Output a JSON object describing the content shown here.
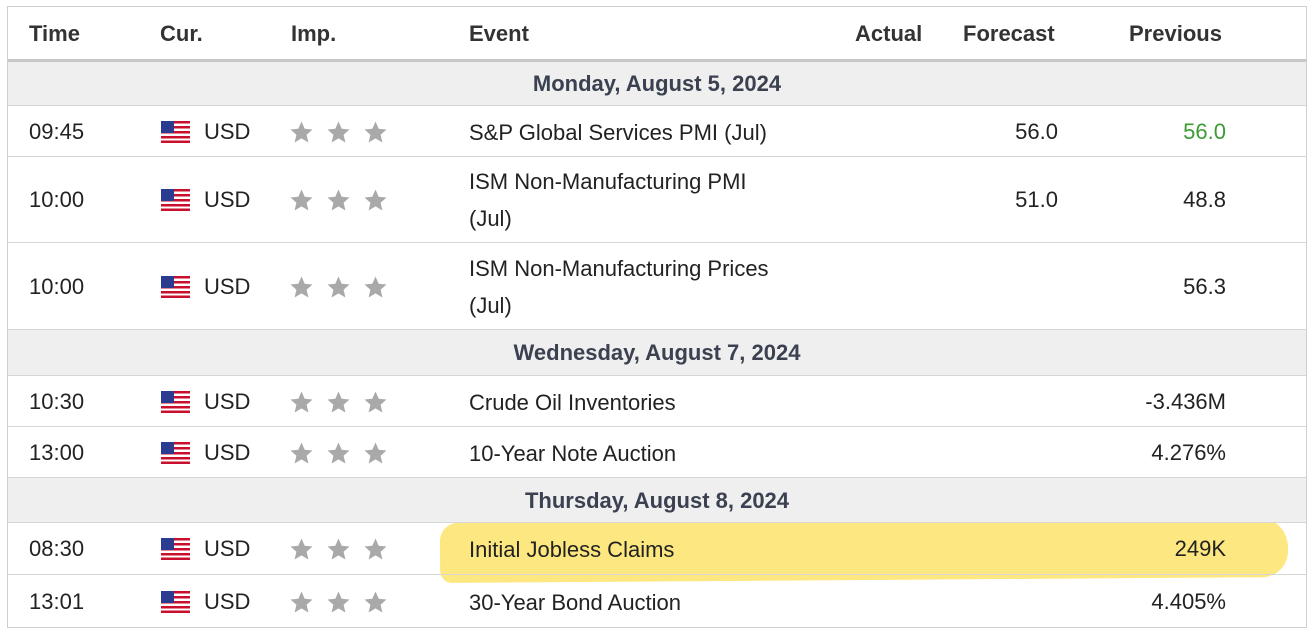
{
  "header": {
    "time": "Time",
    "currency": "Cur.",
    "importance": "Imp.",
    "event": "Event",
    "actual": "Actual",
    "forecast": "Forecast",
    "previous": "Previous"
  },
  "groups": [
    {
      "day": "Monday, August 5, 2024",
      "rows": [
        {
          "time": "09:45",
          "currency": "USD",
          "flag": "us-flag-icon",
          "stars": 3,
          "event_line1": "S&P Global Services PMI (Jul)",
          "event_line2": "",
          "actual": "",
          "forecast": "56.0",
          "previous": "56.0",
          "previous_color": "#3c9b35"
        },
        {
          "time": "10:00",
          "currency": "USD",
          "flag": "us-flag-icon",
          "stars": 3,
          "event_line1": "ISM Non-Manufacturing PMI",
          "event_line2": "(Jul)",
          "actual": "",
          "forecast": "51.0",
          "previous": "48.8"
        },
        {
          "time": "10:00",
          "currency": "USD",
          "flag": "us-flag-icon",
          "stars": 3,
          "event_line1": "ISM Non-Manufacturing Prices",
          "event_line2": "(Jul)",
          "actual": "",
          "forecast": "",
          "previous": "56.3"
        }
      ]
    },
    {
      "day": "Wednesday, August 7, 2024",
      "rows": [
        {
          "time": "10:30",
          "currency": "USD",
          "flag": "us-flag-icon",
          "stars": 3,
          "event_line1": "Crude Oil Inventories",
          "event_line2": "",
          "actual": "",
          "forecast": "",
          "previous": "-3.436M"
        },
        {
          "time": "13:00",
          "currency": "USD",
          "flag": "us-flag-icon",
          "stars": 3,
          "event_line1": "10-Year Note Auction",
          "event_line2": "",
          "actual": "",
          "forecast": "",
          "previous": "4.276%"
        }
      ]
    },
    {
      "day": "Thursday, August 8, 2024",
      "rows": [
        {
          "time": "08:30",
          "currency": "USD",
          "flag": "us-flag-icon",
          "stars": 3,
          "event_line1": "Initial Jobless Claims",
          "event_line2": "",
          "actual": "",
          "forecast": "",
          "previous": "249K",
          "highlighted": true
        },
        {
          "time": "13:01",
          "currency": "USD",
          "flag": "us-flag-icon",
          "stars": 3,
          "event_line1": "30-Year Bond Auction",
          "event_line2": "",
          "actual": "",
          "forecast": "",
          "previous": "4.405%"
        }
      ]
    }
  ],
  "colors": {
    "star_gray": "#a9a9a9",
    "highlight_yellow": "#fde36a",
    "day_background": "#efefef",
    "green_value": "#3c9b35"
  }
}
